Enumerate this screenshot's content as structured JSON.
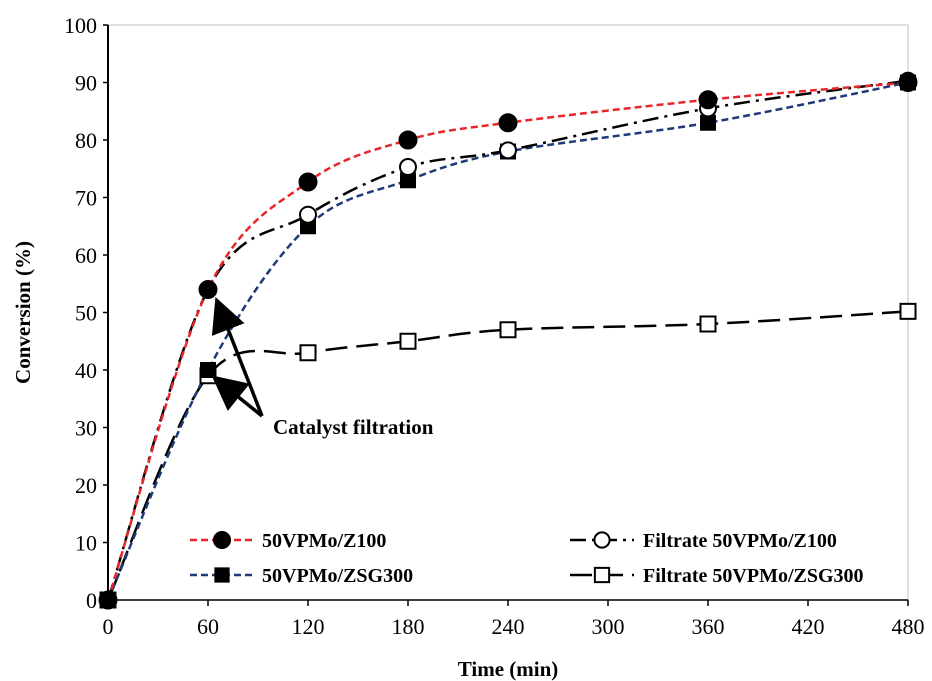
{
  "chart_data": {
    "type": "line",
    "title": "",
    "xlabel": "Time (min)",
    "ylabel": "Conversion (%)",
    "xlim": [
      0,
      480
    ],
    "ylim": [
      0,
      100
    ],
    "xticks": [
      0,
      60,
      120,
      180,
      240,
      300,
      360,
      420,
      480
    ],
    "yticks": [
      0,
      10,
      20,
      30,
      40,
      50,
      60,
      70,
      80,
      90,
      100
    ],
    "grid": false,
    "legend_position": "bottom",
    "series": [
      {
        "name": "50VPMo/Z100",
        "x": [
          0,
          60,
          120,
          180,
          240,
          360,
          480
        ],
        "y": [
          0,
          54,
          72.7,
          80,
          83,
          87,
          90
        ],
        "color": "#e8262a",
        "marker": "filled-circle",
        "line": "dashed"
      },
      {
        "name": "50VPMo/ZSG300",
        "x": [
          0,
          60,
          120,
          180,
          240,
          360,
          480
        ],
        "y": [
          0,
          40,
          65,
          73,
          78,
          83,
          90
        ],
        "color": "#1f3a78",
        "marker": "filled-square",
        "line": "dashed"
      },
      {
        "name": "Filtrate 50VPMo/Z100",
        "x": [
          0,
          60,
          120,
          180,
          240,
          360,
          480
        ],
        "y": [
          0,
          54,
          67,
          75.3,
          78.2,
          85.5,
          90.3
        ],
        "color": "#000000",
        "marker": "open-circle",
        "line": "dash-dot"
      },
      {
        "name": "Filtrate 50VPMo/ZSG300",
        "x": [
          0,
          60,
          120,
          180,
          240,
          360,
          480
        ],
        "y": [
          0,
          39,
          43,
          45,
          47,
          48,
          50.2
        ],
        "color": "#000000",
        "marker": "open-square",
        "line": "long-dash"
      }
    ],
    "annotations": [
      {
        "text": "Catalyst filtration",
        "arrow_targets": [
          [
            60,
            54
          ],
          [
            60,
            39
          ]
        ]
      }
    ]
  }
}
